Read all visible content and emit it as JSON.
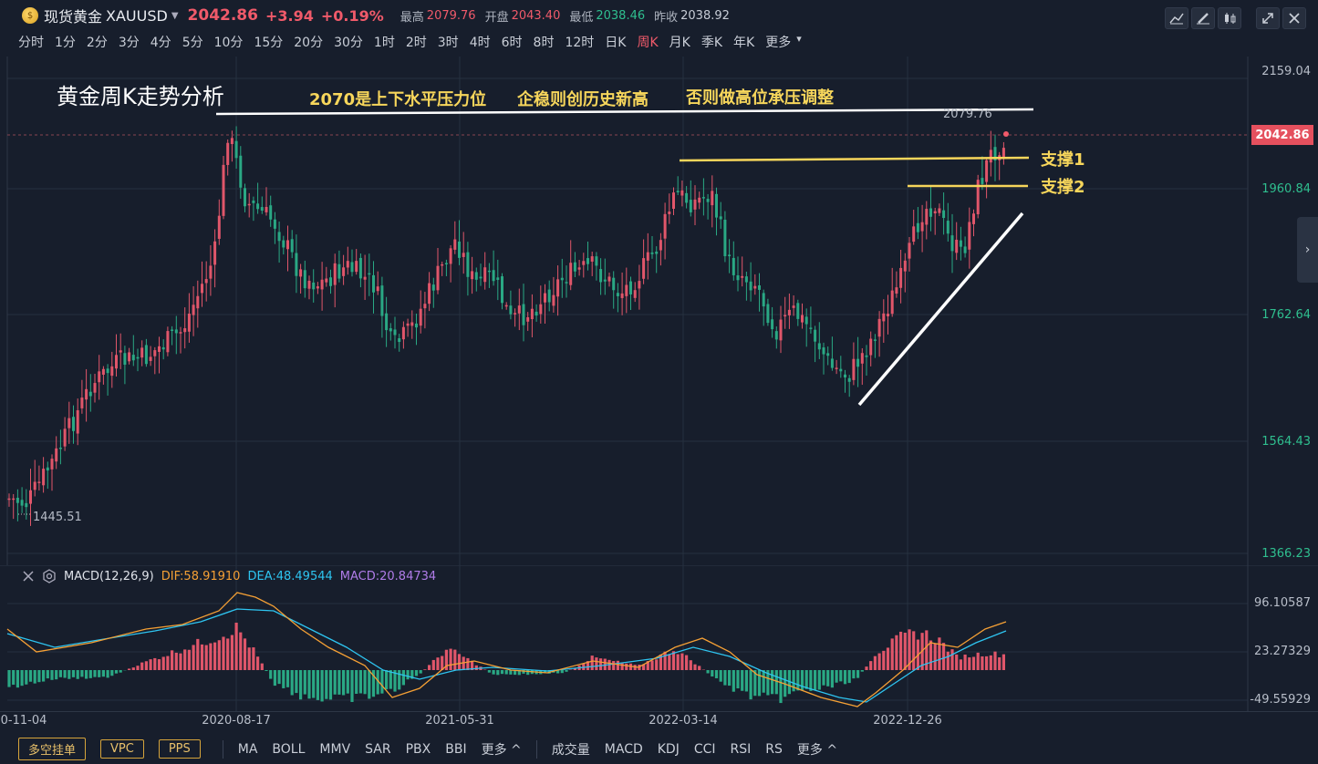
{
  "header": {
    "instrument_name": "现货黄金",
    "symbol": "XAUUSD",
    "price": "2042.86",
    "change": "+3.94",
    "change_pct": "+0.19%",
    "high_label": "最高",
    "high": "2079.76",
    "open_label": "开盘",
    "open": "2043.40",
    "low_label": "最低",
    "low": "2038.46",
    "prev_close_label": "昨收",
    "prev_close": "2038.92"
  },
  "periods": [
    "分时",
    "1分",
    "2分",
    "3分",
    "4分",
    "5分",
    "10分",
    "15分",
    "20分",
    "30分",
    "1时",
    "2时",
    "3时",
    "4时",
    "6时",
    "8时",
    "12时",
    "日K",
    "周K",
    "月K",
    "季K",
    "年K",
    "更多"
  ],
  "active_period": "周K",
  "toolbar_icons": [
    "line-tool-icon",
    "draw-tool-icon",
    "candle-style-icon",
    "expand-icon",
    "close-icon"
  ],
  "annotations": {
    "title": "黄金周K走势分析",
    "note1": "2070是上下水平压力位",
    "note2": "企稳则创历史新高",
    "note3": "否则做高位承压调整",
    "support1": "支撑1",
    "support2": "支撑2",
    "high_marker": "2079.76",
    "low_marker": "1445.51"
  },
  "price_axis": {
    "labels": [
      "2159.04",
      "1960.84",
      "1762.64",
      "1564.43",
      "1366.23"
    ],
    "current": "2042.86"
  },
  "macd": {
    "name": "MACD(12,26,9)",
    "dif": "DIF:58.91910",
    "dea": "DEA:48.49544",
    "macd": "MACD:20.84734",
    "axis": [
      "96.10587",
      "23.27329",
      "-49.55929"
    ]
  },
  "date_axis": [
    "0-11-04",
    "2020-08-17",
    "2021-05-31",
    "2022-03-14",
    "2022-12-26"
  ],
  "bottom": {
    "buttons": [
      "多空挂单",
      "VPC",
      "PPS"
    ],
    "main_indicators": [
      "MA",
      "BOLL",
      "MMV",
      "SAR",
      "PBX",
      "BBI"
    ],
    "more1": "更多",
    "sub_indicators": [
      "成交量",
      "MACD",
      "KDJ",
      "CCI",
      "RSI",
      "RS"
    ],
    "more2": "更多"
  },
  "colors": {
    "up": "#f05a6a",
    "down": "#2fbf8f",
    "annotation": "#f7d65b",
    "dif": "#f5a035",
    "dea": "#2ec4f0"
  }
}
